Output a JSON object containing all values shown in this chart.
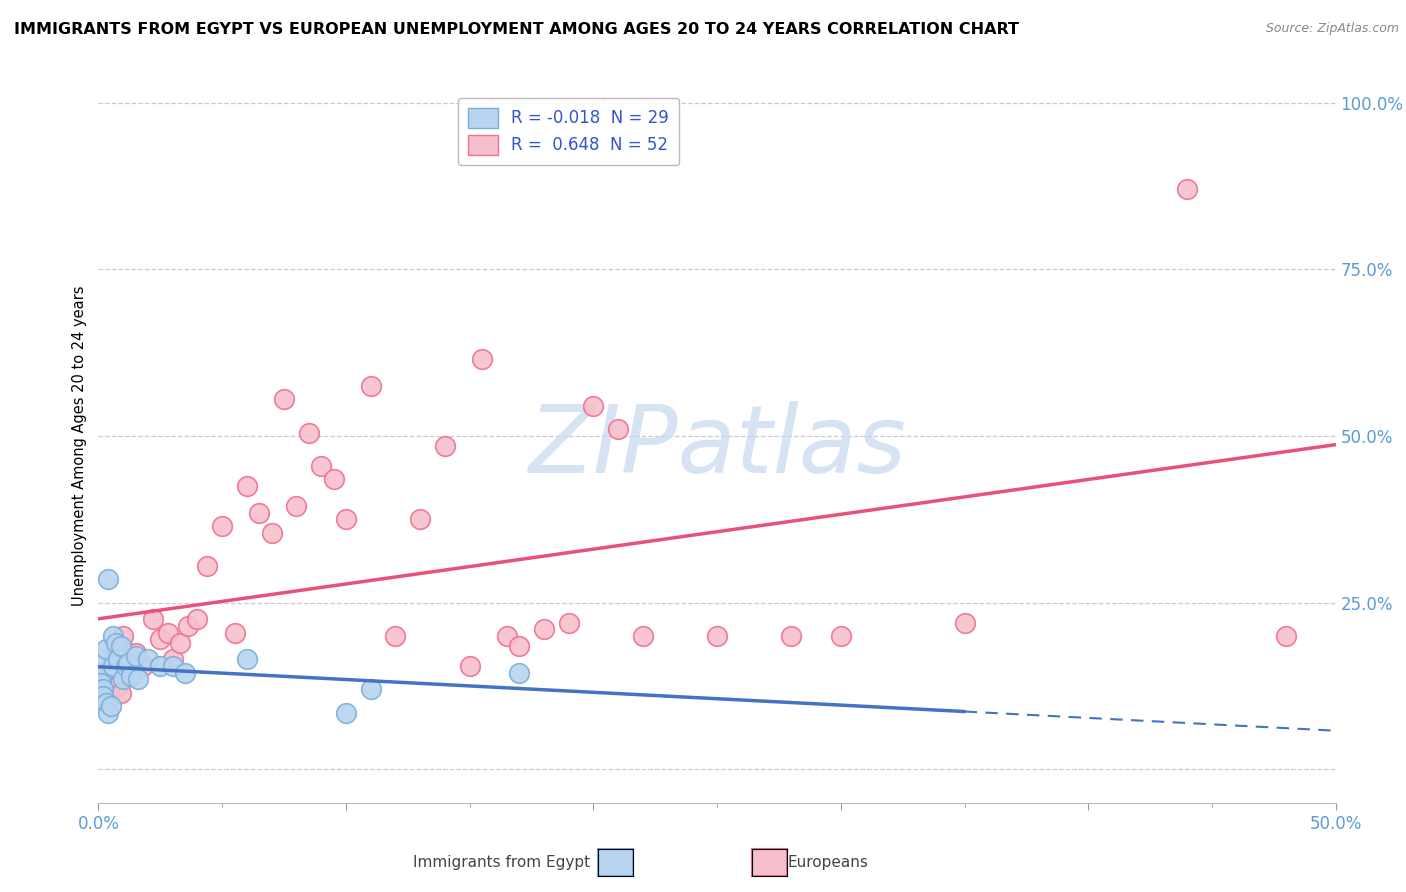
{
  "title": "IMMIGRANTS FROM EGYPT VS EUROPEAN UNEMPLOYMENT AMONG AGES 20 TO 24 YEARS CORRELATION CHART",
  "source": "Source: ZipAtlas.com",
  "ylabel": "Unemployment Among Ages 20 to 24 years",
  "xlim": [
    0.0,
    0.5
  ],
  "ylim": [
    -0.05,
    1.02
  ],
  "ytick_values": [
    0.0,
    0.25,
    0.5,
    0.75,
    1.0
  ],
  "ytick_labels": [
    "",
    "25.0%",
    "50.0%",
    "75.0%",
    "100.0%"
  ],
  "xtick_values": [
    0.0,
    0.1,
    0.2,
    0.3,
    0.4,
    0.5
  ],
  "xtick_labels": [
    "0.0%",
    "",
    "",
    "",
    "",
    "50.0%"
  ],
  "legend_entries": [
    {
      "label": "R = -0.018  N = 29",
      "facecolor": "#b8d4f0",
      "edgecolor": "#7ab0d8"
    },
    {
      "label": "R =  0.648  N = 52",
      "facecolor": "#f5c0cc",
      "edgecolor": "#f07090"
    }
  ],
  "legend_bottom": [
    "Immigrants from Egypt",
    "Europeans"
  ],
  "egypt_facecolor": "#b8d4f0",
  "egypt_edgecolor": "#7ab0d8",
  "europe_facecolor": "#f5c0cc",
  "europe_edgecolor": "#f07090",
  "egypt_line_color": "#4472c4",
  "europe_line_color": "#e8527a",
  "watermark_text": "ZIPatlas",
  "watermark_color": "#c5d8ee",
  "background_color": "#ffffff",
  "grid_color": "#cccccc",
  "tick_label_color": "#5b9bd5",
  "title_fontsize": 11.5,
  "source_fontsize": 9,
  "egypt_scatter": [
    [
      0.001,
      0.165
    ],
    [
      0.001,
      0.14
    ],
    [
      0.001,
      0.13
    ],
    [
      0.002,
      0.12
    ],
    [
      0.002,
      0.11
    ],
    [
      0.003,
      0.18
    ],
    [
      0.003,
      0.1
    ],
    [
      0.004,
      0.285
    ],
    [
      0.004,
      0.085
    ],
    [
      0.005,
      0.095
    ],
    [
      0.006,
      0.2
    ],
    [
      0.006,
      0.155
    ],
    [
      0.007,
      0.19
    ],
    [
      0.008,
      0.165
    ],
    [
      0.009,
      0.185
    ],
    [
      0.01,
      0.135
    ],
    [
      0.011,
      0.155
    ],
    [
      0.012,
      0.16
    ],
    [
      0.013,
      0.14
    ],
    [
      0.015,
      0.17
    ],
    [
      0.016,
      0.135
    ],
    [
      0.02,
      0.165
    ],
    [
      0.025,
      0.155
    ],
    [
      0.03,
      0.155
    ],
    [
      0.035,
      0.145
    ],
    [
      0.06,
      0.165
    ],
    [
      0.1,
      0.085
    ],
    [
      0.11,
      0.12
    ],
    [
      0.17,
      0.145
    ]
  ],
  "europe_scatter": [
    [
      0.001,
      0.145
    ],
    [
      0.002,
      0.125
    ],
    [
      0.003,
      0.115
    ],
    [
      0.003,
      0.135
    ],
    [
      0.004,
      0.105
    ],
    [
      0.005,
      0.155
    ],
    [
      0.006,
      0.165
    ],
    [
      0.007,
      0.145
    ],
    [
      0.008,
      0.125
    ],
    [
      0.009,
      0.115
    ],
    [
      0.01,
      0.2
    ],
    [
      0.012,
      0.175
    ],
    [
      0.015,
      0.175
    ],
    [
      0.018,
      0.155
    ],
    [
      0.022,
      0.225
    ],
    [
      0.025,
      0.195
    ],
    [
      0.028,
      0.205
    ],
    [
      0.03,
      0.165
    ],
    [
      0.033,
      0.19
    ],
    [
      0.036,
      0.215
    ],
    [
      0.04,
      0.225
    ],
    [
      0.044,
      0.305
    ],
    [
      0.05,
      0.365
    ],
    [
      0.055,
      0.205
    ],
    [
      0.06,
      0.425
    ],
    [
      0.065,
      0.385
    ],
    [
      0.07,
      0.355
    ],
    [
      0.075,
      0.555
    ],
    [
      0.08,
      0.395
    ],
    [
      0.085,
      0.505
    ],
    [
      0.09,
      0.455
    ],
    [
      0.095,
      0.435
    ],
    [
      0.1,
      0.375
    ],
    [
      0.11,
      0.575
    ],
    [
      0.12,
      0.2
    ],
    [
      0.13,
      0.375
    ],
    [
      0.14,
      0.485
    ],
    [
      0.15,
      0.155
    ],
    [
      0.155,
      0.615
    ],
    [
      0.165,
      0.2
    ],
    [
      0.17,
      0.185
    ],
    [
      0.18,
      0.21
    ],
    [
      0.19,
      0.22
    ],
    [
      0.2,
      0.545
    ],
    [
      0.21,
      0.51
    ],
    [
      0.22,
      0.2
    ],
    [
      0.25,
      0.2
    ],
    [
      0.28,
      0.2
    ],
    [
      0.3,
      0.2
    ],
    [
      0.35,
      0.22
    ],
    [
      0.44,
      0.87
    ],
    [
      0.48,
      0.2
    ]
  ],
  "egypt_line_x": [
    0.0,
    0.5
  ],
  "europe_line_x": [
    0.0,
    0.5
  ]
}
